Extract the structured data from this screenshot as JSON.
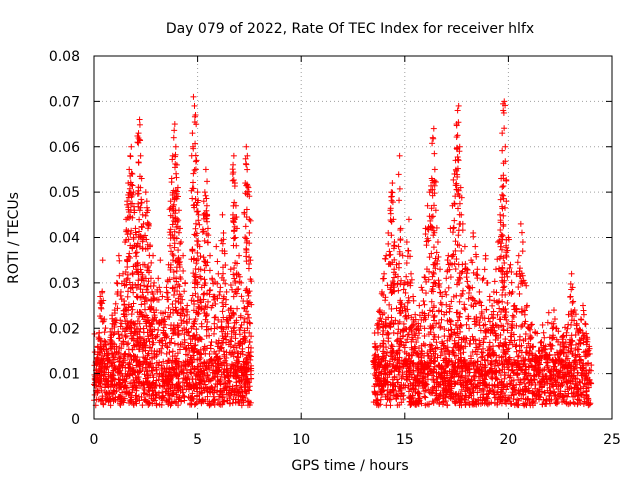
{
  "chart_data": {
    "type": "scatter",
    "title": "Day 079 of 2022, Rate Of TEC Index for receiver hlfx",
    "xlabel": "GPS time / hours",
    "ylabel": "ROTI / TECUs",
    "xlim": [
      0,
      25
    ],
    "ylim": [
      0,
      0.08
    ],
    "grid": true,
    "marker": "+",
    "color": "#ff0000",
    "x_ticks": [
      {
        "value": 0,
        "label": "0"
      },
      {
        "value": 5,
        "label": "5"
      },
      {
        "value": 10,
        "label": "10"
      },
      {
        "value": 15,
        "label": "15"
      },
      {
        "value": 20,
        "label": "20"
      },
      {
        "value": 25,
        "label": "25"
      }
    ],
    "y_ticks": [
      {
        "value": 0,
        "label": "0"
      },
      {
        "value": 0.01,
        "label": "0.01"
      },
      {
        "value": 0.02,
        "label": "0.02"
      },
      {
        "value": 0.03,
        "label": "0.03"
      },
      {
        "value": 0.04,
        "label": "0.04"
      },
      {
        "value": 0.05,
        "label": "0.05"
      },
      {
        "value": 0.06,
        "label": "0.06"
      },
      {
        "value": 0.07,
        "label": "0.07"
      },
      {
        "value": 0.08,
        "label": "0.08"
      }
    ],
    "series": [
      {
        "name": "ROTI",
        "time_segments": [
          [
            0.0,
            7.6
          ],
          [
            13.5,
            24.0
          ]
        ],
        "base_range": [
          0.003,
          0.013
        ],
        "points": [
          [
            0.05,
            0.008
          ],
          [
            0.12,
            0.012
          ],
          [
            0.18,
            0.016
          ],
          [
            0.25,
            0.019
          ],
          [
            0.3,
            0.027
          ],
          [
            0.35,
            0.026
          ],
          [
            0.42,
            0.035
          ],
          [
            0.5,
            0.022
          ],
          [
            0.55,
            0.017
          ],
          [
            0.62,
            0.015
          ],
          [
            0.7,
            0.013
          ],
          [
            0.8,
            0.018
          ],
          [
            0.9,
            0.021
          ],
          [
            1.0,
            0.024
          ],
          [
            1.1,
            0.03
          ],
          [
            1.2,
            0.036
          ],
          [
            1.3,
            0.028
          ],
          [
            1.4,
            0.032
          ],
          [
            1.45,
            0.026
          ],
          [
            1.5,
            0.039
          ],
          [
            1.55,
            0.044
          ],
          [
            1.6,
            0.048
          ],
          [
            1.65,
            0.052
          ],
          [
            1.7,
            0.055
          ],
          [
            1.75,
            0.058
          ],
          [
            1.8,
            0.06
          ],
          [
            1.85,
            0.054
          ],
          [
            1.9,
            0.05
          ],
          [
            1.95,
            0.046
          ],
          [
            2.0,
            0.042
          ],
          [
            2.05,
            0.038
          ],
          [
            2.1,
            0.061
          ],
          [
            2.15,
            0.063
          ],
          [
            2.2,
            0.066
          ],
          [
            2.25,
            0.058
          ],
          [
            2.3,
            0.053
          ],
          [
            2.35,
            0.045
          ],
          [
            2.4,
            0.04
          ],
          [
            2.45,
            0.034
          ],
          [
            2.5,
            0.05
          ],
          [
            2.55,
            0.048
          ],
          [
            2.6,
            0.046
          ],
          [
            2.65,
            0.043
          ],
          [
            2.7,
            0.038
          ],
          [
            2.75,
            0.031
          ],
          [
            2.8,
            0.028
          ],
          [
            2.85,
            0.036
          ],
          [
            2.9,
            0.03
          ],
          [
            3.0,
            0.024
          ],
          [
            3.1,
            0.031
          ],
          [
            3.2,
            0.035
          ],
          [
            3.3,
            0.027
          ],
          [
            3.4,
            0.022
          ],
          [
            3.5,
            0.029
          ],
          [
            3.6,
            0.034
          ],
          [
            3.7,
            0.048
          ],
          [
            3.75,
            0.053
          ],
          [
            3.8,
            0.058
          ],
          [
            3.85,
            0.062
          ],
          [
            3.9,
            0.065
          ],
          [
            3.95,
            0.06
          ],
          [
            4.0,
            0.056
          ],
          [
            4.05,
            0.051
          ],
          [
            4.1,
            0.046
          ],
          [
            4.15,
            0.042
          ],
          [
            4.2,
            0.039
          ],
          [
            4.3,
            0.036
          ],
          [
            4.4,
            0.03
          ],
          [
            4.5,
            0.025
          ],
          [
            4.6,
            0.022
          ],
          [
            4.7,
            0.02
          ],
          [
            4.75,
            0.063
          ],
          [
            4.8,
            0.071
          ],
          [
            4.85,
            0.069
          ],
          [
            4.9,
            0.067
          ],
          [
            4.95,
            0.057
          ],
          [
            5.0,
            0.05
          ],
          [
            5.05,
            0.045
          ],
          [
            5.1,
            0.038
          ],
          [
            5.15,
            0.033
          ],
          [
            5.2,
            0.029
          ],
          [
            5.3,
            0.048
          ],
          [
            5.35,
            0.05
          ],
          [
            5.4,
            0.055
          ],
          [
            5.45,
            0.047
          ],
          [
            5.5,
            0.042
          ],
          [
            5.6,
            0.036
          ],
          [
            5.7,
            0.031
          ],
          [
            5.8,
            0.027
          ],
          [
            5.9,
            0.038
          ],
          [
            6.0,
            0.032
          ],
          [
            6.1,
            0.029
          ],
          [
            6.2,
            0.045
          ],
          [
            6.25,
            0.041
          ],
          [
            6.3,
            0.037
          ],
          [
            6.4,
            0.028
          ],
          [
            6.5,
            0.024
          ],
          [
            6.6,
            0.033
          ],
          [
            6.7,
            0.054
          ],
          [
            6.75,
            0.058
          ],
          [
            6.8,
            0.052
          ],
          [
            6.85,
            0.047
          ],
          [
            6.9,
            0.042
          ],
          [
            7.0,
            0.036
          ],
          [
            7.1,
            0.03
          ],
          [
            7.2,
            0.026
          ],
          [
            7.3,
            0.052
          ],
          [
            7.35,
            0.06
          ],
          [
            7.4,
            0.058
          ],
          [
            7.45,
            0.051
          ],
          [
            7.5,
            0.044
          ],
          [
            7.55,
            0.035
          ],
          [
            13.5,
            0.012
          ],
          [
            13.6,
            0.016
          ],
          [
            13.7,
            0.021
          ],
          [
            13.8,
            0.024
          ],
          [
            13.9,
            0.028
          ],
          [
            14.0,
            0.032
          ],
          [
            14.1,
            0.036
          ],
          [
            14.2,
            0.041
          ],
          [
            14.3,
            0.046
          ],
          [
            14.35,
            0.05
          ],
          [
            14.4,
            0.052
          ],
          [
            14.45,
            0.044
          ],
          [
            14.5,
            0.039
          ],
          [
            14.6,
            0.034
          ],
          [
            14.7,
            0.038
          ],
          [
            14.75,
            0.058
          ],
          [
            14.8,
            0.042
          ],
          [
            14.9,
            0.036
          ],
          [
            15.0,
            0.03
          ],
          [
            15.1,
            0.039
          ],
          [
            15.2,
            0.044
          ],
          [
            15.3,
            0.032
          ],
          [
            15.4,
            0.027
          ],
          [
            15.5,
            0.023
          ],
          [
            15.6,
            0.02
          ],
          [
            15.7,
            0.025
          ],
          [
            15.8,
            0.029
          ],
          [
            15.9,
            0.026
          ],
          [
            16.0,
            0.042
          ],
          [
            16.1,
            0.047
          ],
          [
            16.2,
            0.05
          ],
          [
            16.3,
            0.053
          ],
          [
            16.35,
            0.062
          ],
          [
            16.4,
            0.064
          ],
          [
            16.45,
            0.055
          ],
          [
            16.5,
            0.046
          ],
          [
            16.6,
            0.039
          ],
          [
            16.7,
            0.033
          ],
          [
            16.8,
            0.027
          ],
          [
            16.9,
            0.023
          ],
          [
            17.0,
            0.031
          ],
          [
            17.1,
            0.036
          ],
          [
            17.2,
            0.042
          ],
          [
            17.3,
            0.047
          ],
          [
            17.4,
            0.054
          ],
          [
            17.45,
            0.057
          ],
          [
            17.5,
            0.065
          ],
          [
            17.55,
            0.068
          ],
          [
            17.6,
            0.069
          ],
          [
            17.65,
            0.06
          ],
          [
            17.7,
            0.051
          ],
          [
            17.8,
            0.043
          ],
          [
            17.9,
            0.038
          ],
          [
            18.0,
            0.033
          ],
          [
            18.1,
            0.029
          ],
          [
            18.2,
            0.035
          ],
          [
            18.3,
            0.041
          ],
          [
            18.4,
            0.038
          ],
          [
            18.5,
            0.033
          ],
          [
            18.6,
            0.028
          ],
          [
            18.7,
            0.025
          ],
          [
            18.8,
            0.031
          ],
          [
            18.9,
            0.036
          ],
          [
            19.0,
            0.03
          ],
          [
            19.1,
            0.027
          ],
          [
            19.2,
            0.023
          ],
          [
            19.3,
            0.028
          ],
          [
            19.4,
            0.033
          ],
          [
            19.5,
            0.039
          ],
          [
            19.6,
            0.045
          ],
          [
            19.65,
            0.053
          ],
          [
            19.7,
            0.063
          ],
          [
            19.75,
            0.068
          ],
          [
            19.8,
            0.07
          ],
          [
            19.85,
            0.06
          ],
          [
            19.9,
            0.048
          ],
          [
            20.0,
            0.04
          ],
          [
            20.1,
            0.034
          ],
          [
            20.2,
            0.028
          ],
          [
            20.3,
            0.025
          ],
          [
            20.4,
            0.032
          ],
          [
            20.5,
            0.036
          ],
          [
            20.6,
            0.043
          ],
          [
            20.7,
            0.039
          ],
          [
            20.8,
            0.03
          ],
          [
            20.9,
            0.025
          ],
          [
            21.0,
            0.02
          ],
          [
            21.1,
            0.018
          ],
          [
            21.2,
            0.016
          ],
          [
            21.3,
            0.014
          ],
          [
            21.4,
            0.013
          ],
          [
            21.5,
            0.015
          ],
          [
            21.6,
            0.017
          ],
          [
            21.7,
            0.019
          ],
          [
            21.8,
            0.016
          ],
          [
            21.9,
            0.014
          ],
          [
            22.0,
            0.018
          ],
          [
            22.1,
            0.021
          ],
          [
            22.2,
            0.024
          ],
          [
            22.3,
            0.02
          ],
          [
            22.4,
            0.017
          ],
          [
            22.5,
            0.015
          ],
          [
            22.6,
            0.018
          ],
          [
            22.7,
            0.016
          ],
          [
            22.8,
            0.019
          ],
          [
            22.9,
            0.023
          ],
          [
            23.0,
            0.027
          ],
          [
            23.05,
            0.032
          ],
          [
            23.1,
            0.029
          ],
          [
            23.2,
            0.024
          ],
          [
            23.3,
            0.021
          ],
          [
            23.4,
            0.019
          ],
          [
            23.5,
            0.022
          ],
          [
            23.6,
            0.025
          ],
          [
            23.7,
            0.021
          ],
          [
            23.8,
            0.018
          ],
          [
            23.9,
            0.016
          ]
        ]
      }
    ]
  }
}
